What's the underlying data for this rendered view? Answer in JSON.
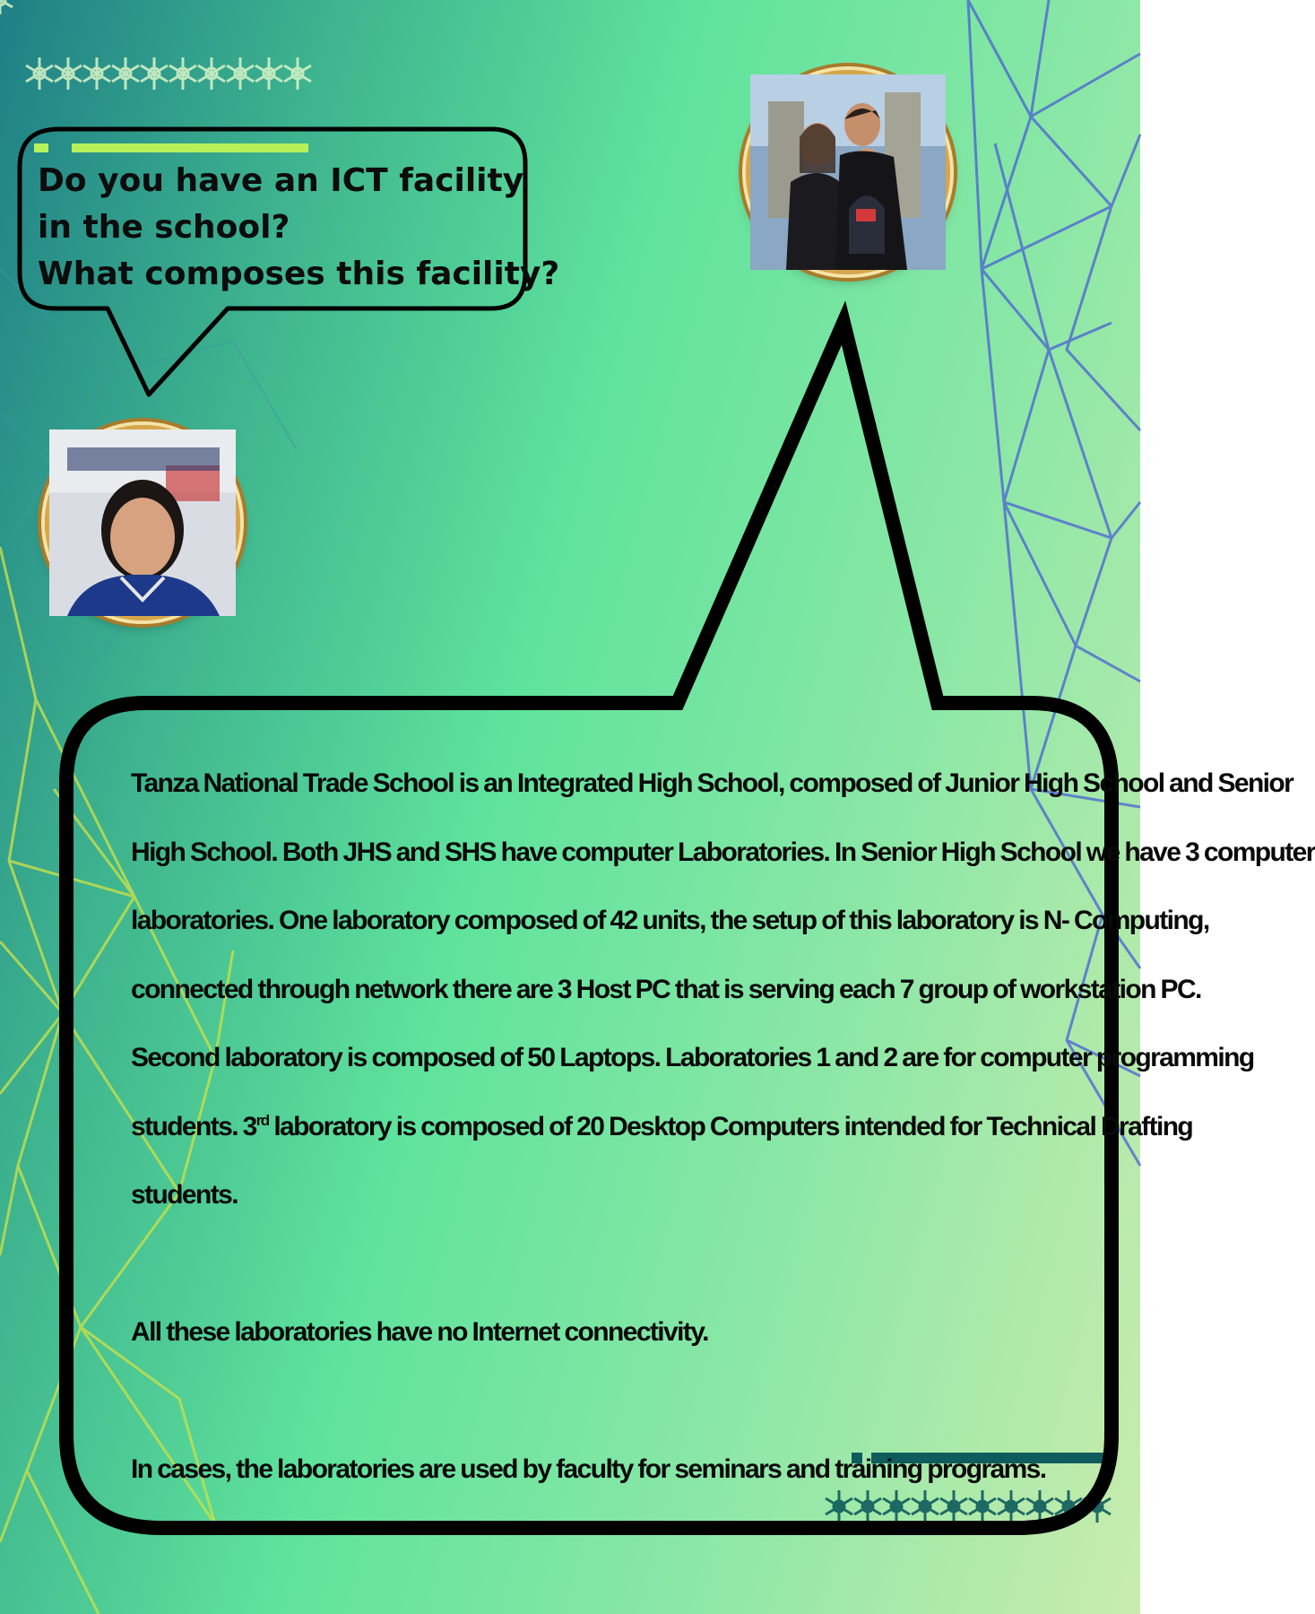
{
  "question": {
    "lines": [
      "Do you have an ICT facility",
      "in the school?",
      "What composes this facility?"
    ]
  },
  "answer": {
    "p1_lines": [
      "Tanza National Trade School is an Integrated High School, composed of Junior High School and Senior",
      "High School. Both JHS and SHS have computer Laboratories. In Senior High School we have 3 computer",
      "laboratories. One laboratory composed of 42 units, the setup of this laboratory is N- Computing,",
      "connected through network there are 3 Host PC that is serving each 7 group of workstation PC.",
      "Second laboratory is composed of 50 Laptops. Laboratories 1 and 2 are for computer programming"
    ],
    "p1_line6_before": "students. 3",
    "p1_line6_sup": "rd",
    "p1_line6_after": " laboratory is composed of 20 Desktop Computers intended for Technical Drafting",
    "p1_line7": "students.",
    "p2": "All these laboratories have no Internet connectivity.",
    "p3": "In cases, the laboratories are used by faculty for seminars and training programs."
  },
  "colors": {
    "outline": "#000000",
    "frame_gold": "#d8a64a",
    "decor_teal": "#0f5c5c",
    "accent_green": "#b6f05a",
    "line_blue": "#4a5fd6",
    "line_yellow": "#c8e04a"
  }
}
